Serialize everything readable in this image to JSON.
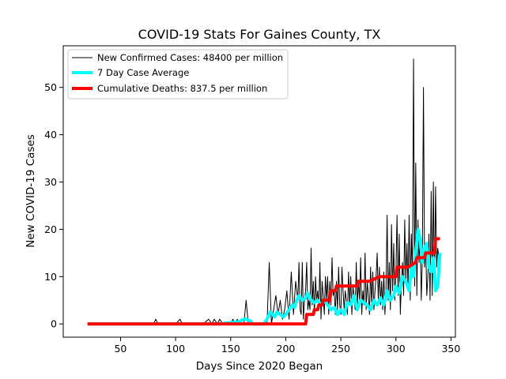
{
  "chart_data": {
    "type": "line",
    "title": "COVID-19 Stats For Gaines County, TX",
    "xlabel": "Days Since 2020 Began",
    "ylabel": "New COVID-19 Cases",
    "xlim": [
      -2,
      354
    ],
    "ylim": [
      -2.8,
      58.8
    ],
    "xticks": [
      50,
      100,
      150,
      200,
      250,
      300,
      350
    ],
    "yticks": [
      0,
      10,
      20,
      30,
      40,
      50
    ],
    "grid": false,
    "legend_position": "top-left",
    "series": [
      {
        "name": "New Confirmed Cases: 48400 per million",
        "color": "#000000",
        "line_width": 1,
        "x": [
          20,
          40,
          60,
          80,
          82,
          84,
          86,
          90,
          95,
          100,
          104,
          106,
          108,
          115,
          120,
          125,
          130,
          133,
          135,
          138,
          140,
          143,
          145,
          150,
          152,
          154,
          156,
          158,
          160,
          162,
          164,
          166,
          170,
          175,
          180,
          183,
          185,
          187,
          189,
          191,
          193,
          195,
          197,
          199,
          201,
          203,
          205,
          207,
          209,
          211,
          212,
          213,
          214,
          215,
          216,
          217,
          218,
          219,
          220,
          221,
          222,
          223,
          224,
          225,
          226,
          227,
          228,
          229,
          230,
          231,
          232,
          233,
          234,
          235,
          236,
          237,
          238,
          239,
          240,
          241,
          242,
          243,
          244,
          245,
          246,
          247,
          248,
          249,
          250,
          251,
          252,
          253,
          254,
          255,
          256,
          257,
          258,
          259,
          260,
          261,
          262,
          263,
          264,
          265,
          266,
          267,
          268,
          269,
          270,
          271,
          272,
          273,
          274,
          275,
          276,
          277,
          278,
          279,
          280,
          281,
          282,
          283,
          284,
          285,
          286,
          287,
          288,
          289,
          290,
          291,
          292,
          293,
          294,
          295,
          296,
          297,
          298,
          299,
          300,
          301,
          302,
          303,
          304,
          305,
          306,
          307,
          308,
          309,
          310,
          311,
          312,
          313,
          314,
          315,
          316,
          317,
          318,
          319,
          320,
          321,
          322,
          323,
          324,
          325,
          326,
          327,
          328,
          329,
          330,
          331,
          332,
          333,
          334,
          335,
          336,
          337,
          338,
          339,
          340
        ],
        "y": [
          0,
          0,
          0,
          0,
          1,
          0,
          0,
          0,
          0,
          0,
          1,
          0,
          0,
          0,
          0,
          0,
          1,
          0,
          1,
          0,
          1,
          0,
          0,
          0,
          1,
          0,
          1,
          0,
          0,
          0,
          5,
          0,
          0,
          0,
          0,
          0,
          13,
          0,
          3,
          6,
          2,
          5,
          1,
          3,
          7,
          1,
          11,
          2,
          9,
          5,
          13,
          3,
          2,
          13,
          1,
          5,
          7,
          13,
          3,
          5,
          3,
          16,
          4,
          9,
          2,
          10,
          5,
          7,
          3,
          13,
          1,
          9,
          6,
          2,
          10,
          5,
          10,
          2,
          9,
          4,
          14,
          6,
          7,
          2,
          9,
          3,
          12,
          4,
          2,
          12,
          7,
          3,
          7,
          5,
          2,
          11,
          4,
          10,
          2,
          8,
          6,
          3,
          13,
          4,
          9,
          5,
          14,
          2,
          7,
          4,
          15,
          3,
          9,
          6,
          2,
          12,
          4,
          11,
          3,
          7,
          10,
          15,
          5,
          12,
          4,
          9,
          3,
          11,
          2,
          7,
          23,
          5,
          13,
          3,
          21,
          7,
          17,
          5,
          11,
          23,
          6,
          19,
          2,
          9,
          13,
          6,
          22,
          9,
          17,
          7,
          23,
          5,
          19,
          10,
          56,
          8,
          34,
          6,
          22,
          13,
          19,
          5,
          14,
          50,
          12,
          17,
          6,
          10,
          19,
          5,
          28,
          6,
          30,
          7,
          29,
          12,
          16,
          14,
          15
        ]
      },
      {
        "name": "7 Day Case Average",
        "color": "#00ffff",
        "line_width": 4,
        "x": [
          20,
          60,
          100,
          130,
          140,
          150,
          155,
          158,
          160,
          162,
          164,
          166,
          168,
          170,
          180,
          183,
          186,
          188,
          190,
          192,
          195,
          198,
          200,
          203,
          206,
          208,
          210,
          212,
          215,
          218,
          220,
          223,
          226,
          229,
          232,
          235,
          238,
          241,
          244,
          247,
          250,
          253,
          256,
          259,
          262,
          265,
          268,
          271,
          274,
          277,
          280,
          283,
          286,
          289,
          292,
          295,
          298,
          300,
          303,
          306,
          309,
          312,
          314,
          316,
          318,
          320,
          322,
          324,
          326,
          328,
          330,
          332,
          334,
          336,
          338,
          340
        ],
        "y": [
          0,
          0,
          0,
          0,
          0,
          0.3,
          0.4,
          0.5,
          0.8,
          1,
          1,
          0.8,
          0.6,
          0,
          0,
          1,
          2.5,
          2,
          1.5,
          2.5,
          2,
          1.5,
          2,
          3,
          4,
          3.5,
          5,
          6,
          5,
          5.5,
          6.5,
          5,
          4.5,
          5,
          4,
          5,
          4,
          3,
          3.5,
          2,
          3,
          2,
          4.5,
          4,
          6,
          3,
          5,
          4.5,
          4,
          3,
          5,
          4,
          5.5,
          4,
          7,
          5,
          6,
          8,
          6.5,
          10,
          9,
          7,
          12,
          10,
          15,
          20,
          18,
          13,
          16,
          17,
          12,
          11,
          14,
          7,
          8,
          15
        ]
      },
      {
        "name": "Cumulative Deaths: 837.5 per million",
        "color": "#ff0000",
        "line_width": 4,
        "x": [
          20,
          218,
          219,
          225,
          226,
          229,
          230,
          233,
          234,
          240,
          241,
          245,
          246,
          265,
          266,
          275,
          276,
          285,
          286,
          300,
          301,
          310,
          311,
          318,
          319,
          326,
          327,
          335,
          336,
          340
        ],
        "y": [
          0,
          0,
          2,
          2,
          3,
          3,
          4,
          4,
          5,
          5,
          7,
          7,
          8,
          8,
          9,
          9,
          9,
          10,
          10,
          10,
          12,
          12,
          12,
          13,
          14,
          14,
          15,
          15,
          18,
          18
        ]
      }
    ]
  }
}
